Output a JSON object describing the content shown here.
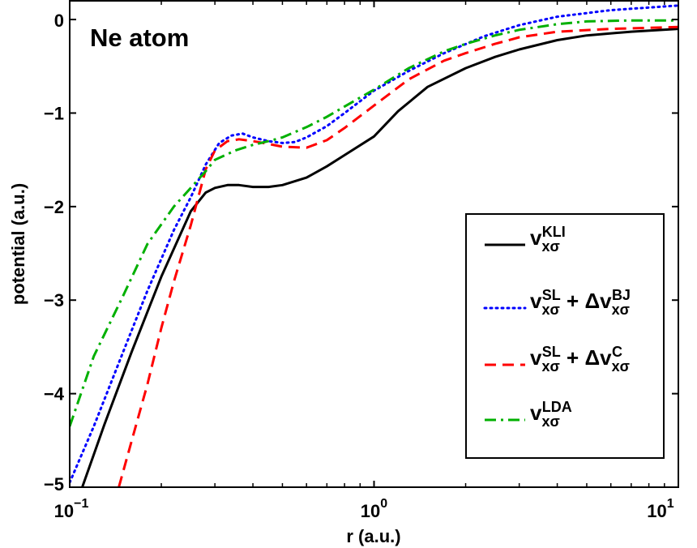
{
  "chart_data": {
    "type": "line",
    "annotation": "Ne atom",
    "xlabel": "r (a.u.)",
    "ylabel": "potential (a.u.)",
    "xscale": "log",
    "xlim": [
      0.1,
      10
    ],
    "ylim": [
      -5,
      0.2
    ],
    "grid": false,
    "legend_position": "bottom-right",
    "x_ticks": [
      {
        "value": 0.1,
        "base": "10",
        "exp": "−1"
      },
      {
        "value": 1,
        "base": "10",
        "exp": "0"
      },
      {
        "value": 10,
        "base": "10",
        "exp": "1"
      }
    ],
    "y_ticks": [
      {
        "value": 0,
        "label": "0"
      },
      {
        "value": -1,
        "label": "−1"
      },
      {
        "value": -2,
        "label": "−2"
      },
      {
        "value": -3,
        "label": "−3"
      },
      {
        "value": -4,
        "label": "−4"
      },
      {
        "value": -5,
        "label": "−5"
      }
    ],
    "series": [
      {
        "key": "kli",
        "legend": {
          "parts": [
            {
              "t": "v",
              "s": "main"
            },
            {
              "t": "xσ",
              "s": "sub"
            },
            {
              "t": "KLI",
              "s": "sup"
            }
          ]
        },
        "color": "#000000",
        "dash": "solid",
        "x": [
          0.11,
          0.13,
          0.16,
          0.2,
          0.25,
          0.28,
          0.3,
          0.33,
          0.36,
          0.4,
          0.45,
          0.5,
          0.6,
          0.7,
          0.8,
          1.0,
          1.2,
          1.5,
          2.0,
          2.5,
          3.0,
          4.0,
          5.0,
          7.0,
          10.0
        ],
        "y": [
          -5.0,
          -4.33,
          -3.55,
          -2.75,
          -2.05,
          -1.85,
          -1.8,
          -1.77,
          -1.77,
          -1.79,
          -1.79,
          -1.77,
          -1.69,
          -1.57,
          -1.45,
          -1.25,
          -0.98,
          -0.72,
          -0.52,
          -0.4,
          -0.32,
          -0.22,
          -0.17,
          -0.13,
          -0.1
        ]
      },
      {
        "key": "slbj",
        "legend": {
          "parts": [
            {
              "t": "v",
              "s": "main"
            },
            {
              "t": "xσ",
              "s": "sub"
            },
            {
              "t": "SL",
              "s": "sup"
            },
            {
              "t": " + Δ",
              "s": "main"
            },
            {
              "t": "v",
              "s": "main"
            },
            {
              "t": "xσ",
              "s": "sub"
            },
            {
              "t": "BJ",
              "s": "sup"
            }
          ]
        },
        "color": "#0000ff",
        "dash": "dotted",
        "x": [
          0.1,
          0.12,
          0.15,
          0.18,
          0.22,
          0.25,
          0.28,
          0.31,
          0.34,
          0.37,
          0.4,
          0.45,
          0.5,
          0.55,
          0.6,
          0.7,
          0.8,
          1.0,
          1.3,
          1.7,
          2.3,
          3.0,
          4.0,
          6.0,
          10.0
        ],
        "y": [
          -4.95,
          -4.35,
          -3.55,
          -2.9,
          -2.25,
          -1.9,
          -1.55,
          -1.32,
          -1.24,
          -1.22,
          -1.26,
          -1.3,
          -1.32,
          -1.31,
          -1.26,
          -1.14,
          -1.0,
          -0.76,
          -0.55,
          -0.36,
          -0.18,
          -0.06,
          0.03,
          0.1,
          0.15
        ]
      },
      {
        "key": "slc",
        "legend": {
          "parts": [
            {
              "t": "v",
              "s": "main"
            },
            {
              "t": "xσ",
              "s": "sub"
            },
            {
              "t": "SL",
              "s": "sup"
            },
            {
              "t": " + Δ",
              "s": "main"
            },
            {
              "t": "v",
              "s": "main"
            },
            {
              "t": "xσ",
              "s": "sub"
            },
            {
              "t": "C",
              "s": "sup"
            }
          ]
        },
        "color": "#ff0000",
        "dash": "dashed",
        "x": [
          0.145,
          0.16,
          0.18,
          0.2,
          0.22,
          0.25,
          0.28,
          0.3,
          0.33,
          0.36,
          0.4,
          0.45,
          0.5,
          0.6,
          0.7,
          0.8,
          1.0,
          1.3,
          1.7,
          2.0,
          2.5,
          3.0,
          4.0,
          6.0,
          10.0
        ],
        "y": [
          -5.0,
          -4.5,
          -3.9,
          -3.3,
          -2.8,
          -2.2,
          -1.6,
          -1.4,
          -1.3,
          -1.28,
          -1.3,
          -1.33,
          -1.36,
          -1.37,
          -1.29,
          -1.16,
          -0.92,
          -0.64,
          -0.44,
          -0.36,
          -0.26,
          -0.19,
          -0.13,
          -0.1,
          -0.08
        ]
      },
      {
        "key": "lda",
        "legend": {
          "parts": [
            {
              "t": "v",
              "s": "main"
            },
            {
              "t": "xσ",
              "s": "sub"
            },
            {
              "t": "LDA",
              "s": "sup"
            }
          ]
        },
        "color": "#00b000",
        "dash": "dashdot",
        "x": [
          0.1,
          0.12,
          0.15,
          0.18,
          0.22,
          0.25,
          0.28,
          0.3,
          0.35,
          0.4,
          0.45,
          0.5,
          0.6,
          0.7,
          0.8,
          1.0,
          1.3,
          1.7,
          2.0,
          2.5,
          3.0,
          4.0,
          5.0,
          7.0,
          10.0
        ],
        "y": [
          -4.35,
          -3.6,
          -2.95,
          -2.4,
          -2.0,
          -1.8,
          -1.62,
          -1.5,
          -1.4,
          -1.34,
          -1.3,
          -1.26,
          -1.15,
          -1.04,
          -0.93,
          -0.75,
          -0.52,
          -0.34,
          -0.26,
          -0.17,
          -0.11,
          -0.05,
          -0.02,
          -0.01,
          -0.01
        ]
      }
    ]
  }
}
